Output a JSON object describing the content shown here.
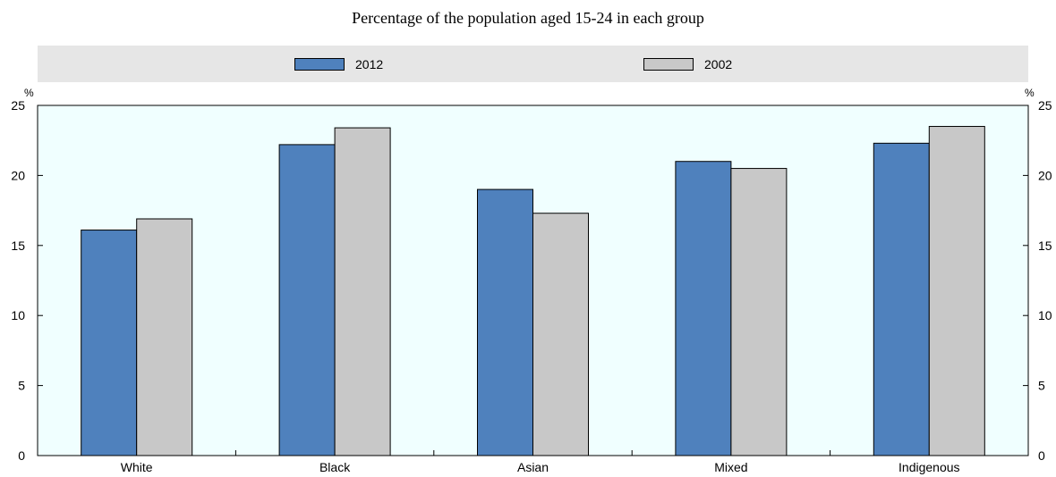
{
  "chart_data": {
    "type": "bar",
    "title": "Percentage of the population aged 15-24 in each group",
    "categories": [
      "White",
      "Black",
      "Asian",
      "Mixed",
      "Indigenous"
    ],
    "series": [
      {
        "name": "2012",
        "color": "#4f81bd",
        "values": [
          16.1,
          22.2,
          19.0,
          21.0,
          22.3
        ]
      },
      {
        "name": "2002",
        "color": "#c8c8c8",
        "values": [
          16.9,
          23.4,
          17.3,
          20.5,
          23.5
        ]
      }
    ],
    "y_unit_left": "%",
    "y_unit_right": "%",
    "ylim": [
      0,
      25
    ],
    "yticks": [
      "0",
      "5",
      "10",
      "15",
      "20",
      "25"
    ],
    "plot_background": "#f0ffff",
    "legend_background": "#e6e6e6",
    "legend_position": "top",
    "grid": false
  }
}
